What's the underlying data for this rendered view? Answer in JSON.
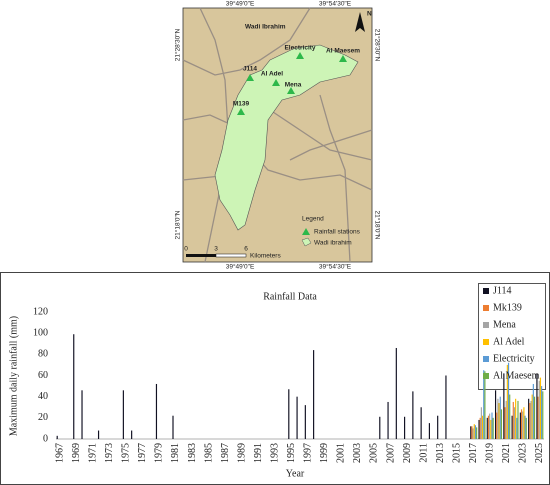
{
  "map": {
    "title": "Wadi Ibrahim",
    "lon_labels": [
      "39°49'0\"E",
      "39°54'30\"E"
    ],
    "lat_labels": [
      "21°28'30\"N",
      "21°18'0\"N"
    ],
    "north": "N",
    "stations": [
      "J114",
      "Al Adel",
      "Electricity",
      "Al Maesem",
      "Mena",
      "M139"
    ],
    "legend": {
      "title": "Legend",
      "items": [
        "Rainfall stations",
        "Wadi ibrahim"
      ]
    },
    "scale": {
      "ticks": [
        0,
        3,
        6
      ],
      "unit": "Kilometers"
    }
  },
  "chart_data": {
    "type": "bar",
    "title": "Rainfall Data",
    "y_label": "Maximum daily rainfall (mm)",
    "x_label": "Year",
    "categories": [
      "1967",
      null,
      "1969",
      null,
      "1971",
      null,
      "1973",
      null,
      "1975",
      null,
      "1977",
      null,
      "1979",
      null,
      "1981",
      null,
      "1983",
      null,
      "1985",
      null,
      "1987",
      null,
      "1989",
      null,
      "1991",
      null,
      "1993",
      null,
      "1995",
      null,
      "1997",
      null,
      "1999",
      null,
      "2001",
      null,
      "2003",
      null,
      "2005",
      null,
      "2007",
      null,
      "2009",
      null,
      "2011",
      null,
      "2013",
      null,
      "2015",
      null,
      "2017",
      null,
      "2019",
      null,
      "2021",
      null,
      "2023",
      null,
      "2025"
    ],
    "series": [
      {
        "name": "J114",
        "color": "#111122",
        "values": [
          3,
          null,
          99,
          46,
          null,
          8,
          null,
          null,
          46,
          8,
          null,
          null,
          52,
          null,
          22,
          null,
          null,
          null,
          null,
          null,
          null,
          null,
          null,
          null,
          null,
          null,
          null,
          null,
          47,
          40,
          32,
          84,
          null,
          null,
          null,
          null,
          null,
          null,
          null,
          21,
          35,
          86,
          21,
          45,
          30,
          15,
          22,
          60,
          null,
          null,
          12,
          18,
          20,
          46,
          62,
          22,
          25,
          38,
          62
        ]
      },
      {
        "name": "Mk139",
        "color": "#ed7d31",
        "values": [
          null,
          null,
          null,
          null,
          null,
          null,
          null,
          null,
          null,
          null,
          null,
          null,
          null,
          null,
          null,
          null,
          null,
          null,
          null,
          null,
          null,
          null,
          null,
          null,
          null,
          null,
          null,
          null,
          null,
          null,
          null,
          null,
          null,
          null,
          null,
          null,
          null,
          null,
          null,
          null,
          null,
          null,
          null,
          null,
          null,
          null,
          null,
          null,
          null,
          null,
          12,
          20,
          22,
          25,
          30,
          35,
          28,
          34,
          40
        ]
      },
      {
        "name": "Mena",
        "color": "#a5a5a5",
        "values": [
          null,
          null,
          null,
          null,
          null,
          null,
          null,
          null,
          null,
          null,
          null,
          null,
          null,
          null,
          null,
          null,
          null,
          null,
          null,
          null,
          null,
          null,
          null,
          null,
          null,
          null,
          null,
          null,
          null,
          null,
          null,
          null,
          null,
          null,
          null,
          null,
          null,
          null,
          null,
          null,
          null,
          null,
          null,
          null,
          null,
          null,
          null,
          null,
          null,
          null,
          10,
          30,
          24,
          38,
          36,
          30,
          26,
          36,
          55
        ]
      },
      {
        "name": "Al Adel",
        "color": "#ffc000",
        "values": [
          null,
          null,
          null,
          null,
          null,
          null,
          null,
          null,
          null,
          null,
          null,
          null,
          null,
          null,
          null,
          null,
          null,
          null,
          null,
          null,
          null,
          null,
          null,
          null,
          null,
          null,
          null,
          null,
          null,
          null,
          null,
          null,
          null,
          null,
          null,
          null,
          null,
          null,
          null,
          null,
          null,
          null,
          null,
          null,
          null,
          null,
          null,
          null,
          null,
          null,
          14,
          22,
          18,
          34,
          70,
          38,
          30,
          42,
          58
        ]
      },
      {
        "name": "Electricity",
        "color": "#5b9bd5",
        "values": [
          null,
          null,
          null,
          null,
          null,
          null,
          null,
          null,
          null,
          null,
          null,
          null,
          null,
          null,
          null,
          null,
          null,
          null,
          null,
          null,
          null,
          null,
          null,
          null,
          null,
          null,
          null,
          null,
          null,
          null,
          null,
          null,
          null,
          null,
          null,
          null,
          null,
          null,
          null,
          null,
          null,
          null,
          null,
          null,
          null,
          null,
          null,
          null,
          null,
          null,
          13,
          65,
          25,
          40,
          72,
          20,
          22,
          52,
          50
        ]
      },
      {
        "name": "Al Maesem",
        "color": "#70ad47",
        "values": [
          null,
          null,
          null,
          null,
          null,
          null,
          null,
          null,
          null,
          null,
          null,
          null,
          null,
          null,
          null,
          null,
          null,
          null,
          null,
          null,
          null,
          null,
          null,
          null,
          null,
          null,
          null,
          null,
          null,
          null,
          null,
          null,
          null,
          null,
          null,
          null,
          null,
          null,
          null,
          null,
          null,
          null,
          null,
          null,
          null,
          null,
          null,
          null,
          null,
          null,
          11,
          64,
          20,
          28,
          42,
          36,
          20,
          40,
          45
        ]
      }
    ],
    "ylim": [
      0,
      120
    ],
    "yticks": [
      0,
      20,
      40,
      60,
      80,
      100,
      120
    ],
    "grid": false,
    "legend": "right"
  }
}
